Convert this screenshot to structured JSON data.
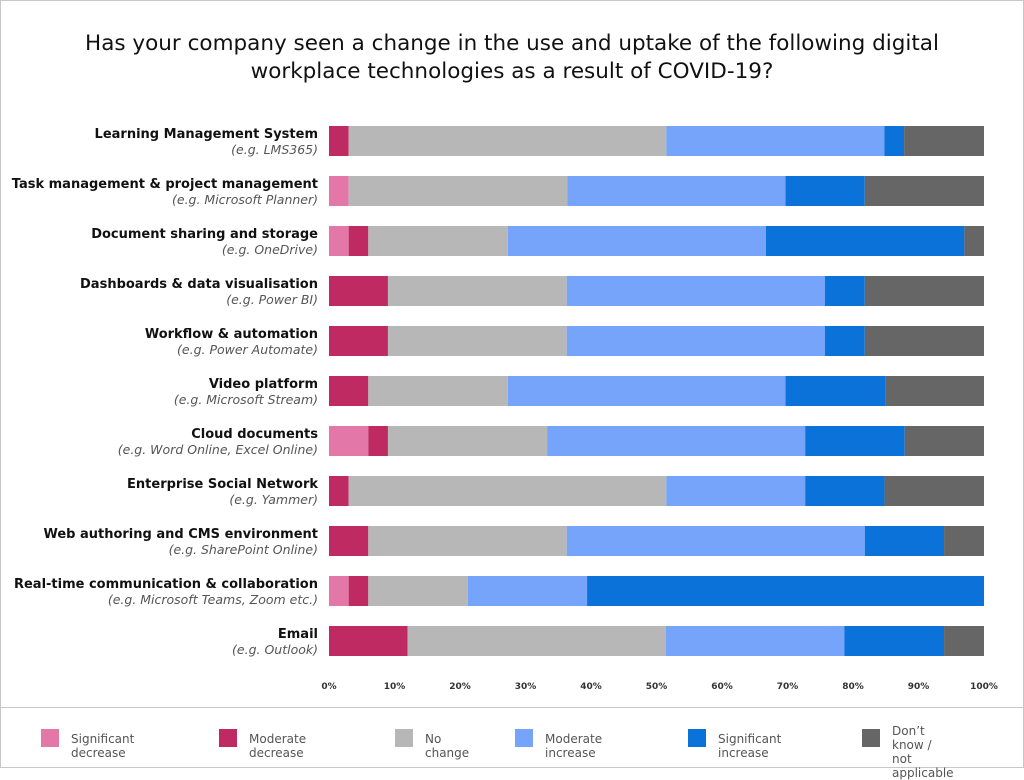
{
  "chart_data": {
    "type": "bar",
    "stacked": true,
    "orientation": "horizontal",
    "title": "Has your company seen a change in the use and uptake of the following digital workplace technologies as a result of COVID-19?",
    "title_lines": [
      "Has your company seen a change in the use and uptake of the following digital",
      "workplace technologies as a result of COVID-19?"
    ],
    "categories": [
      {
        "name": "Learning Management System",
        "example": "(e.g. LMS365)"
      },
      {
        "name": "Task management & project management",
        "example": "(e.g. Microsoft Planner)"
      },
      {
        "name": "Document sharing and storage",
        "example": "(e.g. OneDrive)"
      },
      {
        "name": "Dashboards & data visualisation",
        "example": "(e.g. Power BI)"
      },
      {
        "name": "Workflow & automation",
        "example": "(e.g. Power Automate)"
      },
      {
        "name": "Video platform",
        "example": "(e.g. Microsoft Stream)"
      },
      {
        "name": "Cloud documents",
        "example": "(e.g. Word Online, Excel Online)"
      },
      {
        "name": "Enterprise Social Network",
        "example": "(e.g. Yammer)"
      },
      {
        "name": "Web authoring and CMS environment",
        "example": "(e.g. SharePoint Online)"
      },
      {
        "name": "Real-time communication & collaboration",
        "example": "(e.g. Microsoft Teams, Zoom etc.)"
      },
      {
        "name": "Email",
        "example": "(e.g. Outlook)"
      }
    ],
    "series": [
      {
        "name": "Significant decrease",
        "color": "#e377a7",
        "values": [
          0,
          3,
          3,
          0,
          0,
          0,
          6,
          0,
          0,
          3,
          0
        ]
      },
      {
        "name": "Moderate decrease",
        "color": "#bf2a63",
        "values": [
          3,
          0,
          3,
          9,
          9,
          6,
          3,
          3,
          6,
          3,
          12
        ]
      },
      {
        "name": "No change",
        "color": "#b7b7b7",
        "values": [
          48.5,
          33.4,
          21.3,
          27.3,
          27.3,
          21.3,
          24.3,
          48.5,
          30.3,
          15.2,
          39.4
        ]
      },
      {
        "name": "Moderate increase",
        "color": "#76a4fb",
        "values": [
          33.3,
          33.3,
          39.4,
          39.4,
          39.4,
          42.4,
          39.4,
          21.2,
          45.5,
          18.2,
          27.3
        ]
      },
      {
        "name": "Significant increase",
        "color": "#0b72d9",
        "values": [
          3,
          12.1,
          30.3,
          6.1,
          6.1,
          15.2,
          15.2,
          12.1,
          12.1,
          60.6,
          15.2
        ]
      },
      {
        "name": "Don't know / not applicable",
        "legend_label": "Don’t know /\nnot applicable",
        "color": "#666666",
        "values": [
          12.2,
          18.2,
          3,
          18.2,
          18.2,
          15.1,
          12.1,
          15.2,
          6.1,
          0,
          6.1
        ]
      }
    ],
    "xlim": [
      0,
      100
    ],
    "x_ticks": [
      "0%",
      "10%",
      "20%",
      "30%",
      "40%",
      "50%",
      "60%",
      "70%",
      "80%",
      "90%",
      "100%"
    ],
    "grid": false,
    "legend_position": "bottom"
  }
}
